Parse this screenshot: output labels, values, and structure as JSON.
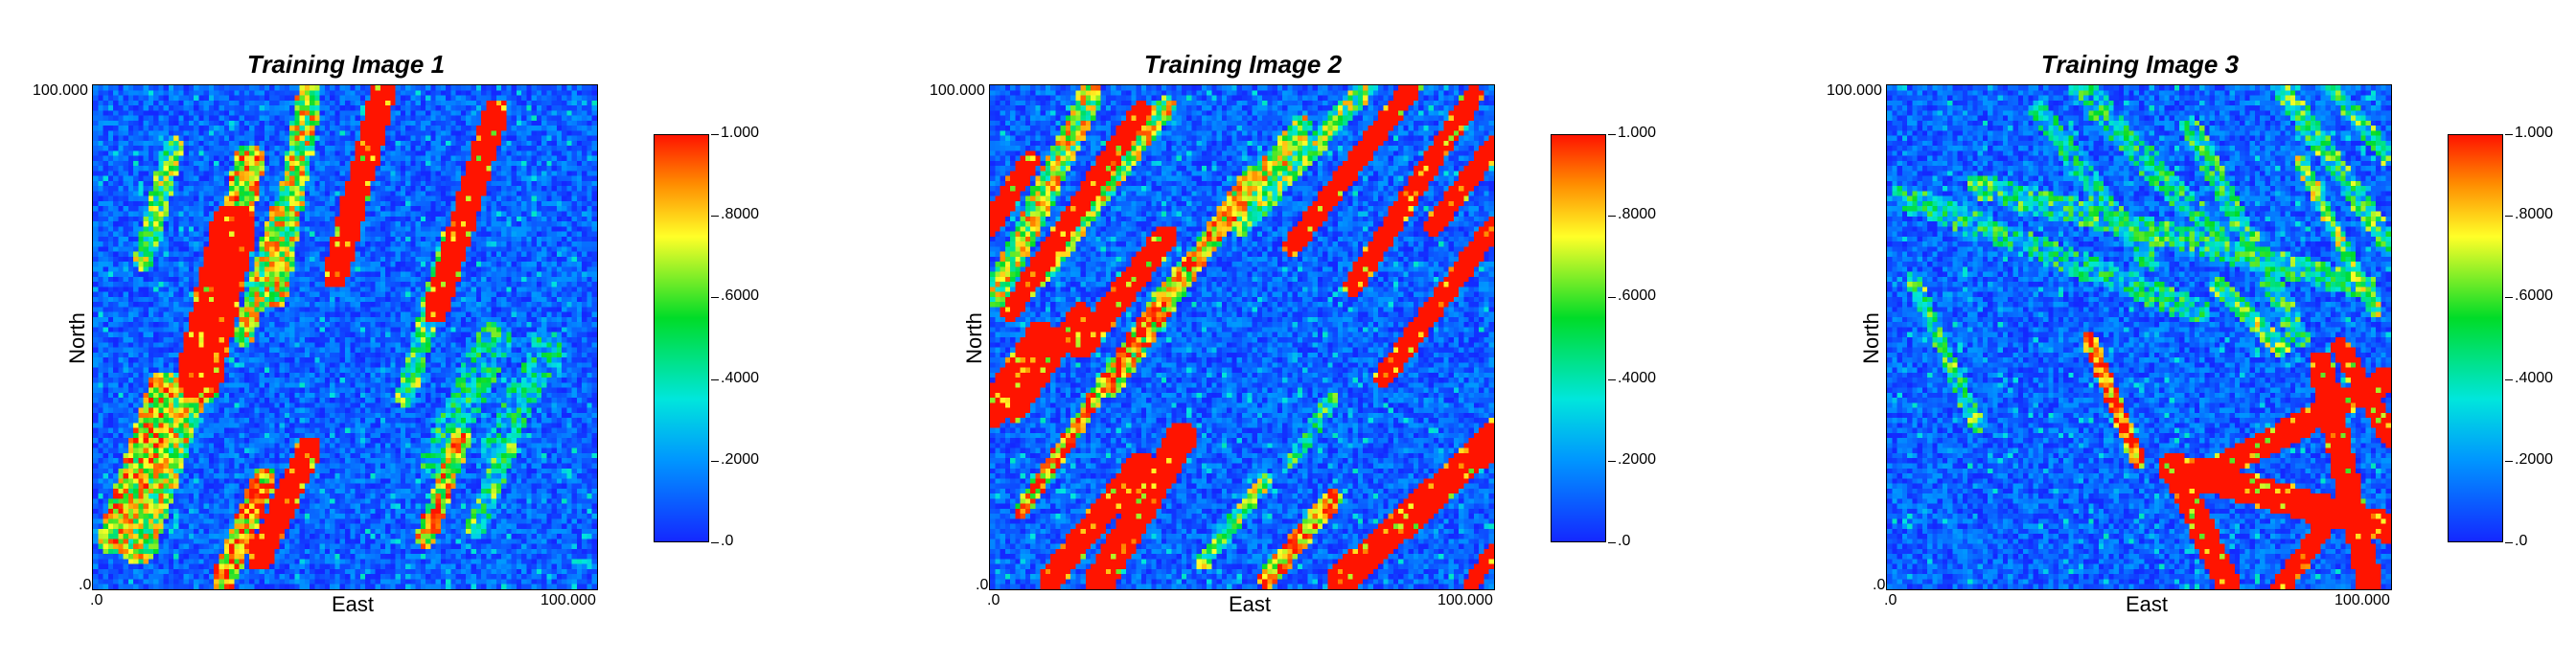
{
  "colors": {
    "low": "#1a3dff",
    "mid": "#00e000",
    "high": "#ff1a00"
  },
  "axes": {
    "x_label": "East",
    "y_label": "North",
    "x_min_label": ".0",
    "x_max_label": "100.000",
    "y_min_label": ".0",
    "y_max_label": "100.000"
  },
  "colorbar": {
    "labels": [
      "1.000",
      ".8000",
      ".6000",
      ".4000",
      ".2000",
      ".0"
    ]
  },
  "chart_data": [
    {
      "type": "heatmap",
      "title": "Training Image 1",
      "xlabel": "East",
      "ylabel": "North",
      "xlim": [
        0,
        100
      ],
      "ylim": [
        0,
        100
      ],
      "value_range": [
        0,
        1
      ],
      "channels_approx": [
        {
          "x1": 10,
          "y1": 65,
          "x2": 16,
          "y2": 88,
          "w": 4,
          "v": 0.5
        },
        {
          "x1": 21,
          "y1": 42,
          "x2": 28,
          "y2": 72,
          "w": 9,
          "v": 1.0
        },
        {
          "x1": 22,
          "y1": 40,
          "x2": 31,
          "y2": 85,
          "w": 6,
          "v": 0.7
        },
        {
          "x1": 30,
          "y1": 50,
          "x2": 37,
          "y2": 75,
          "w": 4,
          "v": 0.6
        },
        {
          "x1": 36,
          "y1": 58,
          "x2": 43,
          "y2": 98,
          "w": 5,
          "v": 0.6
        },
        {
          "x1": 48,
          "y1": 62,
          "x2": 58,
          "y2": 100,
          "w": 5,
          "v": 1.0
        },
        {
          "x1": 62,
          "y1": 38,
          "x2": 71,
          "y2": 70,
          "w": 4,
          "v": 0.45
        },
        {
          "x1": 68,
          "y1": 55,
          "x2": 80,
          "y2": 95,
          "w": 5,
          "v": 1.0
        },
        {
          "x1": 68,
          "y1": 25,
          "x2": 80,
          "y2": 50,
          "w": 7,
          "v": 0.3
        },
        {
          "x1": 80,
          "y1": 28,
          "x2": 90,
          "y2": 48,
          "w": 6,
          "v": 0.25
        },
        {
          "x1": 4,
          "y1": 10,
          "x2": 14,
          "y2": 40,
          "w": 6,
          "v": 0.7
        },
        {
          "x1": 9,
          "y1": 8,
          "x2": 20,
          "y2": 42,
          "w": 7,
          "v": 0.6
        },
        {
          "x1": 26,
          "y1": 2,
          "x2": 34,
          "y2": 22,
          "w": 5,
          "v": 0.8
        },
        {
          "x1": 33,
          "y1": 6,
          "x2": 43,
          "y2": 28,
          "w": 5,
          "v": 1.0
        },
        {
          "x1": 66,
          "y1": 10,
          "x2": 73,
          "y2": 30,
          "w": 4,
          "v": 0.7
        },
        {
          "x1": 76,
          "y1": 12,
          "x2": 82,
          "y2": 28,
          "w": 4,
          "v": 0.4
        }
      ]
    },
    {
      "type": "heatmap",
      "title": "Training Image 2",
      "xlabel": "East",
      "ylabel": "North",
      "xlim": [
        0,
        100
      ],
      "ylim": [
        0,
        100
      ],
      "value_range": [
        0,
        1
      ],
      "channels_approx": [
        {
          "x1": 1,
          "y1": 58,
          "x2": 20,
          "y2": 98,
          "w": 5,
          "v": 0.6
        },
        {
          "x1": 0,
          "y1": 72,
          "x2": 8,
          "y2": 85,
          "w": 4,
          "v": 1.0
        },
        {
          "x1": 4,
          "y1": 55,
          "x2": 30,
          "y2": 95,
          "w": 4,
          "v": 1.0
        },
        {
          "x1": 10,
          "y1": 62,
          "x2": 35,
          "y2": 96,
          "w": 4,
          "v": 0.6
        },
        {
          "x1": 0,
          "y1": 35,
          "x2": 10,
          "y2": 50,
          "w": 6,
          "v": 1.0
        },
        {
          "x1": 5,
          "y1": 35,
          "x2": 18,
          "y2": 55,
          "w": 4,
          "v": 1.0
        },
        {
          "x1": 18,
          "y1": 48,
          "x2": 35,
          "y2": 70,
          "w": 5,
          "v": 1.0
        },
        {
          "x1": 24,
          "y1": 40,
          "x2": 52,
          "y2": 82,
          "w": 4,
          "v": 0.7
        },
        {
          "x1": 33,
          "y1": 56,
          "x2": 62,
          "y2": 92,
          "w": 4,
          "v": 0.6
        },
        {
          "x1": 50,
          "y1": 72,
          "x2": 75,
          "y2": 100,
          "w": 4,
          "v": 0.5
        },
        {
          "x1": 60,
          "y1": 68,
          "x2": 84,
          "y2": 100,
          "w": 4,
          "v": 1.0
        },
        {
          "x1": 72,
          "y1": 60,
          "x2": 96,
          "y2": 98,
          "w": 4,
          "v": 1.0
        },
        {
          "x1": 78,
          "y1": 42,
          "x2": 100,
          "y2": 72,
          "w": 4,
          "v": 1.0
        },
        {
          "x1": 88,
          "y1": 72,
          "x2": 100,
          "y2": 88,
          "w": 4,
          "v": 1.0
        },
        {
          "x1": 6,
          "y1": 15,
          "x2": 32,
          "y2": 55,
          "w": 3,
          "v": 0.8
        },
        {
          "x1": 12,
          "y1": 2,
          "x2": 30,
          "y2": 25,
          "w": 5,
          "v": 1.0
        },
        {
          "x1": 22,
          "y1": 2,
          "x2": 38,
          "y2": 30,
          "w": 6,
          "v": 1.0
        },
        {
          "x1": 60,
          "y1": 25,
          "x2": 68,
          "y2": 38,
          "w": 3,
          "v": 0.35
        },
        {
          "x1": 42,
          "y1": 5,
          "x2": 55,
          "y2": 22,
          "w": 3,
          "v": 0.5
        },
        {
          "x1": 55,
          "y1": 2,
          "x2": 68,
          "y2": 18,
          "w": 4,
          "v": 0.8
        },
        {
          "x1": 70,
          "y1": 2,
          "x2": 100,
          "y2": 30,
          "w": 6,
          "v": 1.0
        },
        {
          "x1": 85,
          "y1": 15,
          "x2": 100,
          "y2": 32,
          "w": 4,
          "v": 0.6
        },
        {
          "x1": 95,
          "y1": 0,
          "x2": 100,
          "y2": 8,
          "w": 3,
          "v": 1.0
        }
      ]
    },
    {
      "type": "heatmap",
      "title": "Training Image 3",
      "xlabel": "East",
      "ylabel": "North",
      "xlim": [
        0,
        100
      ],
      "ylim": [
        0,
        100
      ],
      "value_range": [
        0,
        1
      ],
      "channels_approx": [
        {
          "x1": 3,
          "y1": 78,
          "x2": 62,
          "y2": 55,
          "w": 5,
          "v": 0.3
        },
        {
          "x1": 18,
          "y1": 80,
          "x2": 95,
          "y2": 60,
          "w": 5,
          "v": 0.35
        },
        {
          "x1": 30,
          "y1": 95,
          "x2": 52,
          "y2": 65,
          "w": 4,
          "v": 0.3
        },
        {
          "x1": 38,
          "y1": 100,
          "x2": 65,
          "y2": 70,
          "w": 5,
          "v": 0.3
        },
        {
          "x1": 60,
          "y1": 92,
          "x2": 82,
          "y2": 50,
          "w": 4,
          "v": 0.35
        },
        {
          "x1": 78,
          "y1": 100,
          "x2": 100,
          "y2": 68,
          "w": 4,
          "v": 0.4
        },
        {
          "x1": 88,
          "y1": 100,
          "x2": 100,
          "y2": 85,
          "w": 3,
          "v": 0.4
        },
        {
          "x1": 82,
          "y1": 85,
          "x2": 97,
          "y2": 55,
          "w": 3,
          "v": 0.5
        },
        {
          "x1": 66,
          "y1": 60,
          "x2": 78,
          "y2": 48,
          "w": 4,
          "v": 0.5
        },
        {
          "x1": 5,
          "y1": 62,
          "x2": 18,
          "y2": 32,
          "w": 3,
          "v": 0.4
        },
        {
          "x1": 40,
          "y1": 50,
          "x2": 50,
          "y2": 25,
          "w": 3,
          "v": 0.9
        },
        {
          "x1": 57,
          "y1": 24,
          "x2": 100,
          "y2": 12,
          "w": 6,
          "v": 1.0
        },
        {
          "x1": 58,
          "y1": 22,
          "x2": 68,
          "y2": 0,
          "w": 5,
          "v": 1.0
        },
        {
          "x1": 62,
          "y1": 22,
          "x2": 100,
          "y2": 42,
          "w": 5,
          "v": 1.0
        },
        {
          "x1": 86,
          "y1": 45,
          "x2": 96,
          "y2": 0,
          "w": 5,
          "v": 1.0
        },
        {
          "x1": 90,
          "y1": 48,
          "x2": 100,
          "y2": 30,
          "w": 4,
          "v": 1.0
        },
        {
          "x1": 78,
          "y1": 0,
          "x2": 92,
          "y2": 20,
          "w": 4,
          "v": 1.0
        }
      ]
    }
  ]
}
